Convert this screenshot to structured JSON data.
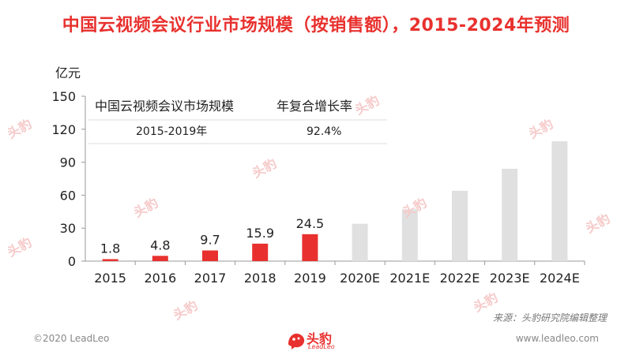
{
  "header": {
    "title": "中国云视频会议行业市场规模（按销售额），2015-2024年预测"
  },
  "chart_data": {
    "type": "bar",
    "title": "中国云视频会议行业市场规模（按销售额），2015-2024年预测",
    "ylabel": "亿元",
    "xlabel": "",
    "ylim": [
      0,
      150
    ],
    "yticks": [
      0,
      30,
      60,
      90,
      120,
      150
    ],
    "grid": false,
    "categories": [
      "2015",
      "2016",
      "2017",
      "2018",
      "2019",
      "2020E",
      "2021E",
      "2022E",
      "2023E",
      "2024E"
    ],
    "values": [
      1.8,
      4.8,
      9.7,
      15.9,
      24.5,
      34,
      47,
      64,
      84,
      109
    ],
    "data_labels": [
      "1.8",
      "4.8",
      "9.7",
      "15.9",
      "24.5",
      "",
      "",
      "",
      "",
      ""
    ],
    "colors": {
      "actual": "#e8312e",
      "forecast": "#e0e0e0",
      "axis": "#999999",
      "text": "#222222"
    },
    "table": {
      "header": [
        "中国云视频会议市场规模",
        "年复合增长率"
      ],
      "row": [
        "2015-2019年",
        "92.4%"
      ]
    }
  },
  "footer": {
    "source": "来源：头豹研究院编辑整理",
    "copyright": "©2020 LeadLeo",
    "website": "www.leadleo.com",
    "logo_text": "头豹",
    "logo_sub": "LeadLeo"
  },
  "watermark": {
    "text": "头豹"
  }
}
